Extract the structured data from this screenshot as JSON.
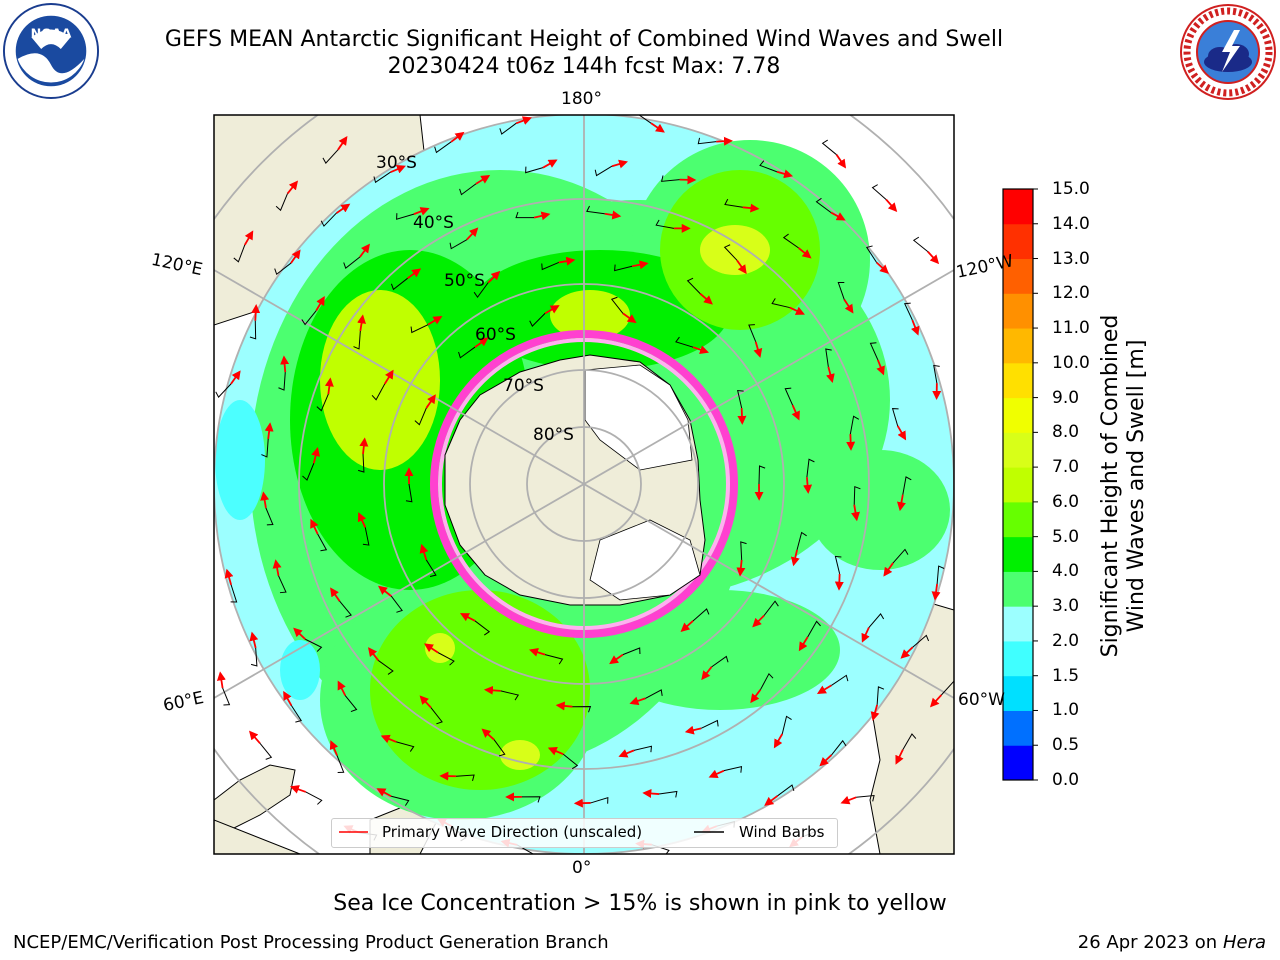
{
  "title_line1": "GEFS MEAN Antarctic Significant Height of Combined Wind Waves and Swell",
  "title_line2": "20230424 t06z 144h fcst   Max: 7.78",
  "logos": {
    "left": "NOAA",
    "right": "NATIONAL WEATHER SERVICE"
  },
  "map": {
    "lon_labels": [
      "180°",
      "120°E",
      "120°W",
      "60°E",
      "60°W",
      "0°"
    ],
    "lat_labels": [
      "30°S",
      "40°S",
      "50°S",
      "60°S",
      "70°S",
      "80°S"
    ],
    "colors": {
      "land": "#efedd9",
      "ice_cap": "#ffffff",
      "grid": "#b0b0b0",
      "arrow": "#ff0000",
      "barb": "#000000"
    }
  },
  "colorbar": {
    "ticks": [
      "15.0",
      "14.0",
      "13.0",
      "12.0",
      "11.0",
      "10.0",
      "9.0",
      "8.0",
      "7.0",
      "6.0",
      "5.0",
      "4.0",
      "3.0",
      "2.0",
      "1.5",
      "1.0",
      "0.5",
      "0.0"
    ],
    "bands": [
      {
        "min": 0.0,
        "max": 0.5,
        "color": "#0000ff"
      },
      {
        "min": 0.5,
        "max": 1.0,
        "color": "#0070ff"
      },
      {
        "min": 1.0,
        "max": 1.5,
        "color": "#00e0ff"
      },
      {
        "min": 1.5,
        "max": 2.0,
        "color": "#40ffff"
      },
      {
        "min": 2.0,
        "max": 3.0,
        "color": "#9cffff"
      },
      {
        "min": 3.0,
        "max": 4.0,
        "color": "#4cff70"
      },
      {
        "min": 4.0,
        "max": 5.0,
        "color": "#00f000"
      },
      {
        "min": 5.0,
        "max": 6.0,
        "color": "#66ff00"
      },
      {
        "min": 6.0,
        "max": 7.0,
        "color": "#c0ff00"
      },
      {
        "min": 7.0,
        "max": 8.0,
        "color": "#d8ff18"
      },
      {
        "min": 8.0,
        "max": 9.0,
        "color": "#f0ff00"
      },
      {
        "min": 9.0,
        "max": 10.0,
        "color": "#ffe000"
      },
      {
        "min": 10.0,
        "max": 11.0,
        "color": "#ffb800"
      },
      {
        "min": 11.0,
        "max": 12.0,
        "color": "#ff9000"
      },
      {
        "min": 12.0,
        "max": 13.0,
        "color": "#ff6000"
      },
      {
        "min": 13.0,
        "max": 14.0,
        "color": "#ff3000"
      },
      {
        "min": 14.0,
        "max": 15.0,
        "color": "#ff0000"
      }
    ],
    "label_line1": "Significant Height of Combined",
    "label_line2": "Wind Waves and Swell [m]"
  },
  "legend": {
    "primary_wave": "Primary Wave Direction (unscaled)",
    "wind_barbs": "Wind Barbs"
  },
  "subtitle": "Sea Ice Concentration > 15% is shown in pink to yellow",
  "footer_left": "NCEP/EMC/Verification Post Processing Product Generation Branch",
  "footer_right_date": "26 Apr 2023 on",
  "footer_right_host": "Hera"
}
